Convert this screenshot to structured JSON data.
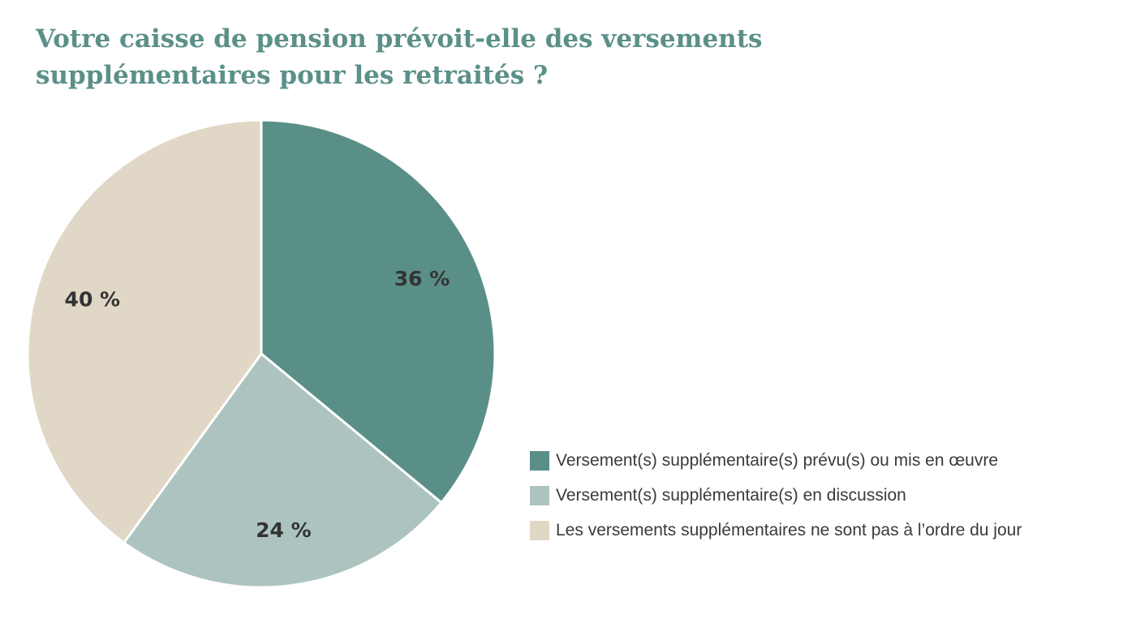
{
  "chart_data": {
    "type": "pie",
    "title_lines": [
      "Votre caisse de pension prévoit-elle des versements",
      "supplémentaires pour les retraités ?"
    ],
    "slices": [
      {
        "label": "Versement(s) supplémentaire(s) prévu(s) ou mis en œuvre",
        "value": 36,
        "value_label": "36 %",
        "color": "#5a8f88"
      },
      {
        "label": "Versement(s) supplémentaire(s) en discussion",
        "value": 24,
        "value_label": "24 %",
        "color": "#adc3bf"
      },
      {
        "label": "Les versements supplémentaires ne sont pas à l’ordre du jour",
        "value": 40,
        "value_label": "40 %",
        "color": "#e0d7c6"
      }
    ],
    "start_angle": "12 o'clock",
    "direction": "clockwise",
    "legend_position": "bottom-right"
  }
}
